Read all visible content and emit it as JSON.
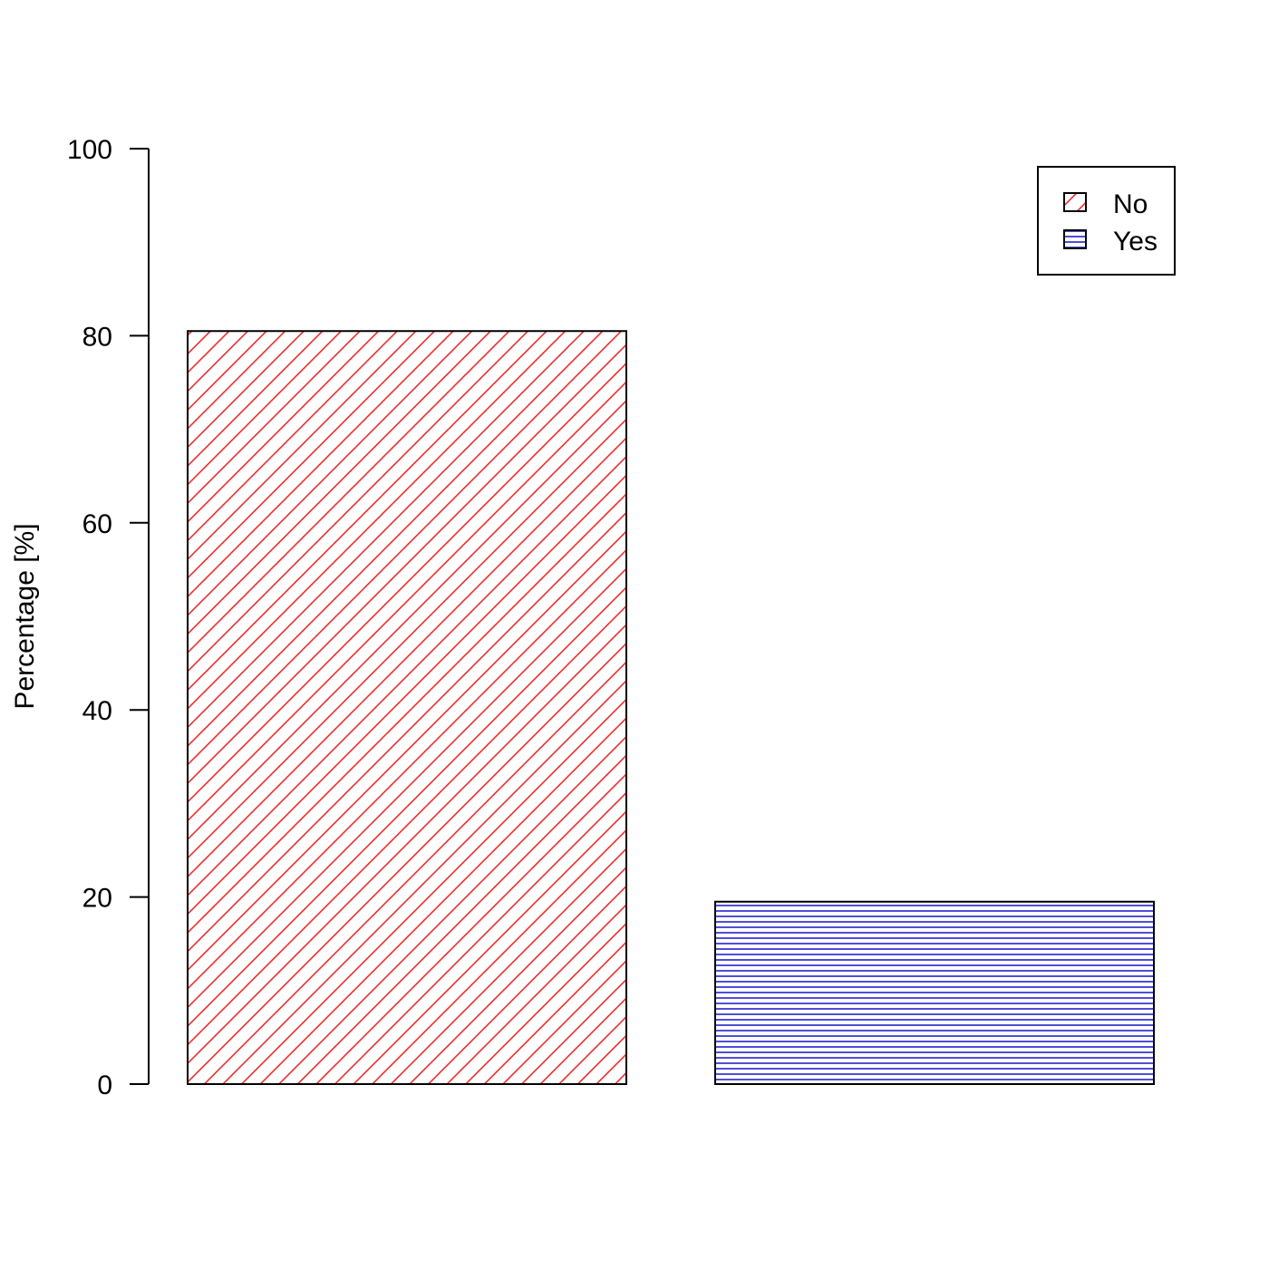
{
  "chart_data": {
    "type": "bar",
    "categories": [
      "No",
      "Yes"
    ],
    "values": [
      80.5,
      19.5
    ],
    "title": "",
    "xlabel": "",
    "ylabel": "Percentage [%]",
    "ylim": [
      0,
      100
    ],
    "yticks": [
      "0",
      "20",
      "40",
      "60",
      "80",
      "100"
    ],
    "grid": false,
    "legend": {
      "position": "top-right",
      "entries": [
        "No",
        "Yes"
      ]
    },
    "colors": {
      "No": "#e8292a",
      "Yes": "#1414c8"
    },
    "patterns": {
      "No": "diagonal-hatch",
      "Yes": "horizontal-hatch"
    }
  }
}
